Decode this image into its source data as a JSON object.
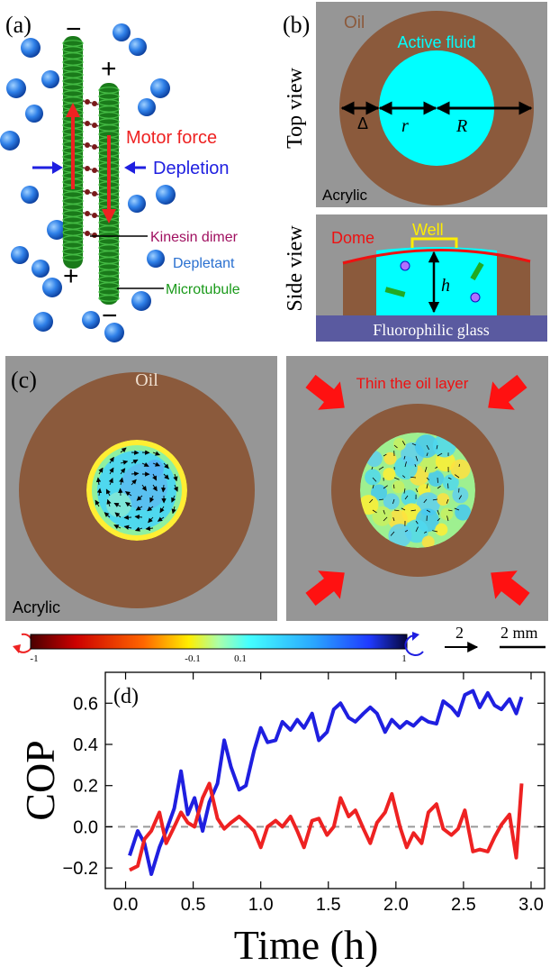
{
  "panel_a": {
    "label": "(a)",
    "minus_top": "−",
    "plus_top": "+",
    "plus_bottom": "+",
    "minus_bottom": "−",
    "motor_force": "Motor force",
    "depletion": "Depletion",
    "kinesin": "Kinesin dimer",
    "depletant": "Depletant",
    "microtubule": "Microtubule"
  },
  "panel_b": {
    "label": "(b)",
    "top_view": "Top view",
    "side_view": "Side view",
    "oil": "Oil",
    "active_fluid": "Active fluid",
    "delta": "Δ",
    "r": "r",
    "R": "R",
    "acrylic": "Acrylic",
    "dome": "Dome",
    "well": "Well",
    "h": "h",
    "glass": "Fluorophilic glass"
  },
  "panel_c": {
    "label": "(c)",
    "oil": "Oil",
    "acrylic": "Acrylic",
    "thin": "Thin the oil layer"
  },
  "colorbar": {
    "ticks": [
      "-1",
      "-0.1",
      "0.1",
      "1"
    ],
    "vel_scale": "2",
    "len_scale": "2 mm"
  },
  "colors": {
    "oil": "#8b5a3c",
    "acrylic": "#969696",
    "cyan": "#00ffff",
    "ccw": "#ee2222",
    "cw": "#1f1fe0",
    "glass": "#5a5aa0"
  },
  "icons": [
    "ccw-rotation-icon",
    "cw-rotation-icon",
    "arrow-icon"
  ],
  "chart_data": {
    "type": "line",
    "panel_label": "(d)",
    "xlabel": "Time (h)",
    "ylabel": "COP",
    "xlim": [
      -0.15,
      3.1
    ],
    "ylim": [
      -0.3,
      0.75
    ],
    "xticks": [
      "0.0",
      "0.5",
      "1.0",
      "1.5",
      "2.0",
      "2.5",
      "3.0"
    ],
    "yticks": [
      "−0.2",
      "0.0",
      "0.2",
      "0.4",
      "0.6"
    ],
    "xtick_values": [
      0,
      0.5,
      1.0,
      1.5,
      2.0,
      2.5,
      3.0
    ],
    "ytick_values": [
      -0.2,
      0,
      0.2,
      0.4,
      0.6
    ],
    "reference_line": 0,
    "series": [
      {
        "color": "#1f1fe0",
        "x": [
          0.03,
          0.09,
          0.14,
          0.19,
          0.25,
          0.3,
          0.36,
          0.41,
          0.46,
          0.51,
          0.57,
          0.62,
          0.68,
          0.73,
          0.78,
          0.84,
          0.89,
          0.95,
          1.0,
          1.05,
          1.11,
          1.16,
          1.22,
          1.27,
          1.32,
          1.38,
          1.43,
          1.49,
          1.54,
          1.59,
          1.65,
          1.7,
          1.76,
          1.81,
          1.86,
          1.92,
          1.97,
          2.03,
          2.08,
          2.13,
          2.19,
          2.24,
          2.3,
          2.35,
          2.41,
          2.46,
          2.51,
          2.57,
          2.62,
          2.68,
          2.73,
          2.78,
          2.84,
          2.89,
          2.93
        ],
        "y": [
          -0.14,
          -0.02,
          -0.08,
          -0.23,
          -0.1,
          -0.02,
          0.09,
          0.27,
          0.06,
          0.14,
          -0.02,
          0.12,
          0.21,
          0.42,
          0.29,
          0.18,
          0.2,
          0.37,
          0.48,
          0.41,
          0.42,
          0.51,
          0.47,
          0.52,
          0.48,
          0.55,
          0.42,
          0.46,
          0.57,
          0.6,
          0.53,
          0.51,
          0.55,
          0.58,
          0.55,
          0.46,
          0.52,
          0.48,
          0.51,
          0.49,
          0.53,
          0.51,
          0.5,
          0.61,
          0.58,
          0.54,
          0.64,
          0.66,
          0.58,
          0.65,
          0.59,
          0.57,
          0.62,
          0.55,
          0.63
        ]
      },
      {
        "color": "#ee2222",
        "x": [
          0.03,
          0.09,
          0.14,
          0.19,
          0.25,
          0.3,
          0.36,
          0.41,
          0.46,
          0.51,
          0.57,
          0.62,
          0.68,
          0.73,
          0.78,
          0.84,
          0.89,
          0.95,
          1.0,
          1.05,
          1.11,
          1.16,
          1.22,
          1.27,
          1.32,
          1.38,
          1.43,
          1.49,
          1.54,
          1.59,
          1.65,
          1.7,
          1.76,
          1.81,
          1.86,
          1.92,
          1.97,
          2.03,
          2.08,
          2.13,
          2.19,
          2.24,
          2.3,
          2.35,
          2.41,
          2.46,
          2.51,
          2.57,
          2.62,
          2.68,
          2.73,
          2.78,
          2.84,
          2.89,
          2.93
        ],
        "y": [
          -0.21,
          -0.19,
          -0.06,
          -0.02,
          0.07,
          -0.08,
          0.0,
          0.07,
          0.02,
          0.0,
          0.14,
          0.21,
          0.04,
          -0.01,
          0.02,
          0.05,
          0.02,
          -0.02,
          -0.1,
          0.0,
          0.03,
          0.0,
          0.05,
          -0.02,
          -0.1,
          0.03,
          0.04,
          -0.04,
          0.0,
          0.14,
          0.05,
          0.08,
          -0.01,
          -0.08,
          0.02,
          0.07,
          0.16,
          0.0,
          -0.1,
          -0.03,
          -0.08,
          0.07,
          0.11,
          -0.01,
          -0.04,
          -0.01,
          0.08,
          -0.12,
          -0.11,
          -0.12,
          -0.05,
          0.01,
          0.06,
          -0.15,
          0.21
        ]
      }
    ]
  }
}
